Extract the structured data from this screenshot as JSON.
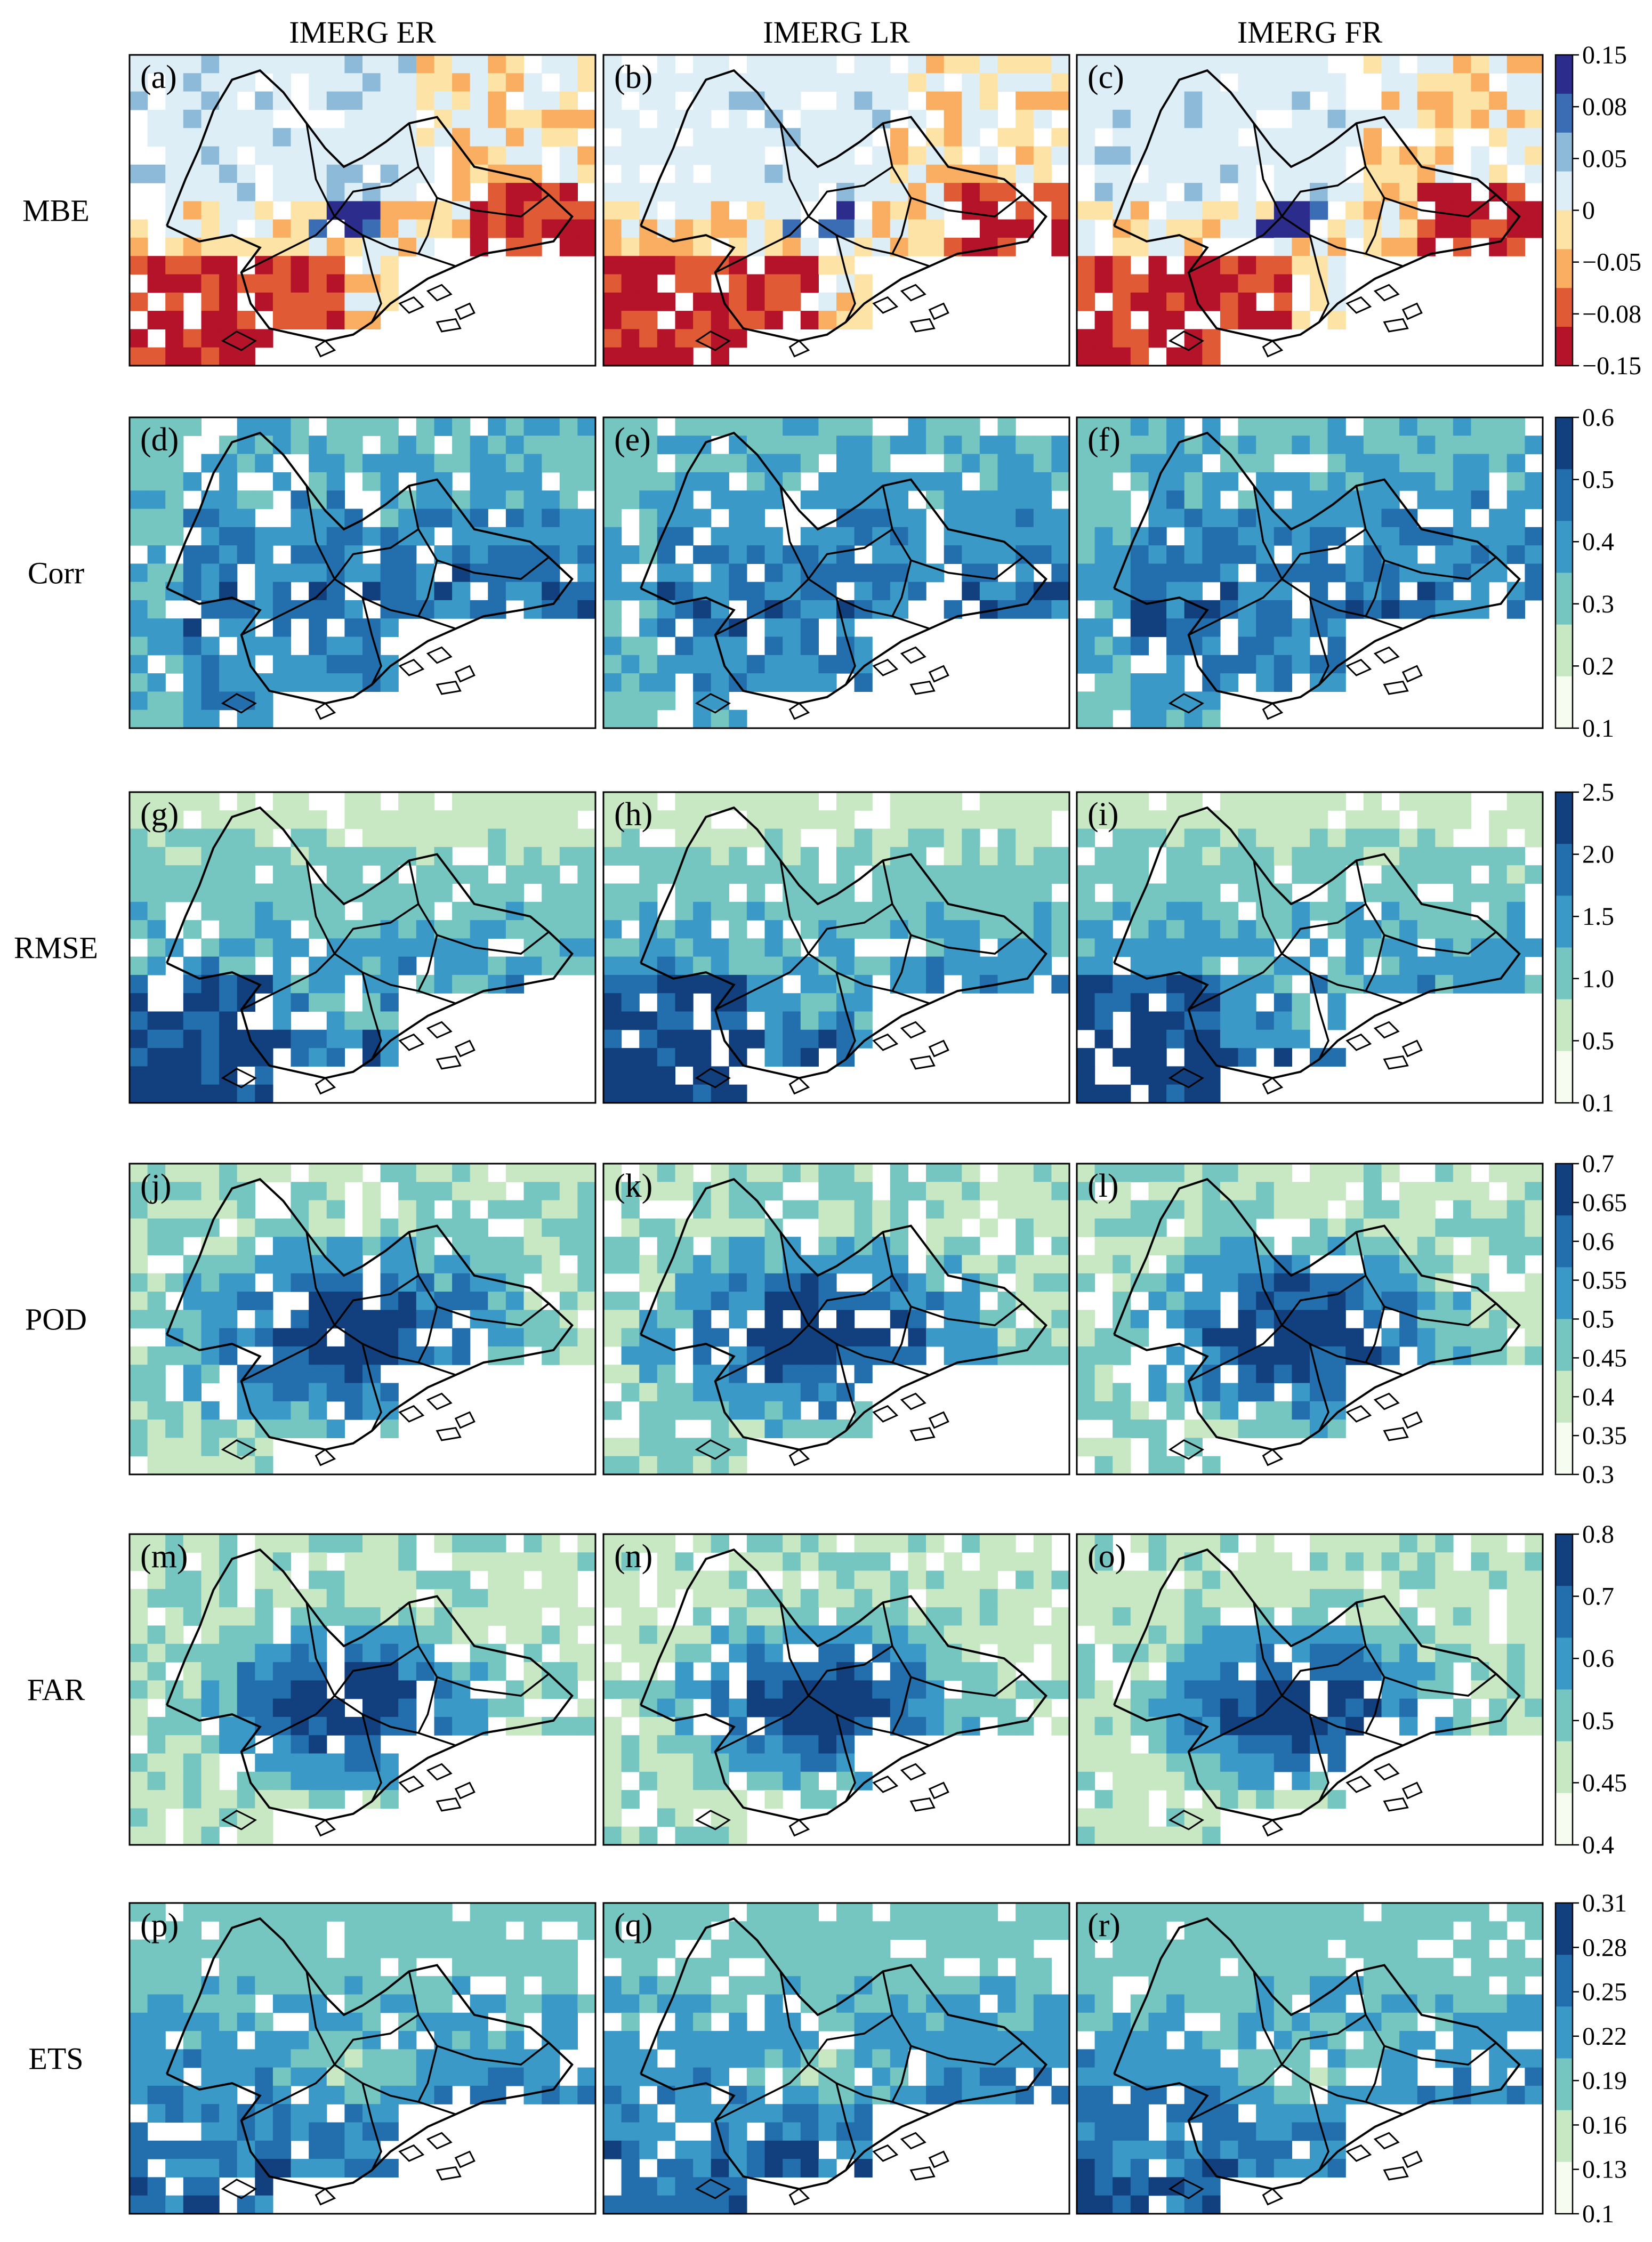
{
  "columns": [
    "IMERG ER",
    "IMERG LR",
    "IMERG FR"
  ],
  "rows": [
    {
      "metric": "MBE",
      "panels": [
        "(a)",
        "(b)",
        "(c)"
      ],
      "colorbar": {
        "ticks": [
          "0.15",
          "0.08",
          "0.05",
          "0",
          "−0.05",
          "−0.08",
          "−0.15"
        ],
        "colors": [
          "#2b2c8c",
          "#3a6db4",
          "#8cbad8",
          "#ddeef7",
          "#fde3a5",
          "#f9ae61",
          "#e05a35",
          "#b5132a"
        ]
      }
    },
    {
      "metric": "Corr",
      "panels": [
        "(d)",
        "(e)",
        "(f)"
      ],
      "colorbar": {
        "ticks": [
          "0.6",
          "0.5",
          "0.4",
          "0.3",
          "0.2",
          "0.1"
        ],
        "colors": [
          "#123f7e",
          "#236fae",
          "#3a99c7",
          "#75c5c0",
          "#c8e8c4",
          "#f7fcf0"
        ]
      }
    },
    {
      "metric": "RMSE",
      "panels": [
        "(g)",
        "(h)",
        "(i)"
      ],
      "colorbar": {
        "ticks": [
          "2.5",
          "2.0",
          "1.5",
          "1.0",
          "0.5",
          "0.1"
        ],
        "colors": [
          "#123f7e",
          "#236fae",
          "#3a99c7",
          "#75c5c0",
          "#c8e8c4",
          "#f7fcf0"
        ]
      }
    },
    {
      "metric": "POD",
      "panels": [
        "(j)",
        "(k)",
        "(l)"
      ],
      "colorbar": {
        "ticks": [
          "0.7",
          "0.65",
          "0.6",
          "0.55",
          "0.5",
          "0.45",
          "0.4",
          "0.35",
          "0.3"
        ],
        "colors": [
          "#123f7e",
          "#236fae",
          "#3a99c7",
          "#75c5c0",
          "#c8e8c4",
          "#f7fcf0"
        ]
      }
    },
    {
      "metric": "FAR",
      "panels": [
        "(m)",
        "(n)",
        "(o)"
      ],
      "colorbar": {
        "ticks": [
          "0.8",
          "0.7",
          "0.6",
          "0.5",
          "0.45",
          "0.4"
        ],
        "colors": [
          "#123f7e",
          "#236fae",
          "#3a99c7",
          "#75c5c0",
          "#c8e8c4",
          "#f7fcf0"
        ]
      }
    },
    {
      "metric": "ETS",
      "panels": [
        "(p)",
        "(q)",
        "(r)"
      ],
      "colorbar": {
        "ticks": [
          "0.31",
          "0.28",
          "0.25",
          "0.22",
          "0.19",
          "0.16",
          "0.13",
          "0.1"
        ],
        "colors": [
          "#123f7e",
          "#236fae",
          "#3a99c7",
          "#75c5c0",
          "#c8e8c4",
          "#f7fcf0"
        ]
      }
    }
  ]
}
